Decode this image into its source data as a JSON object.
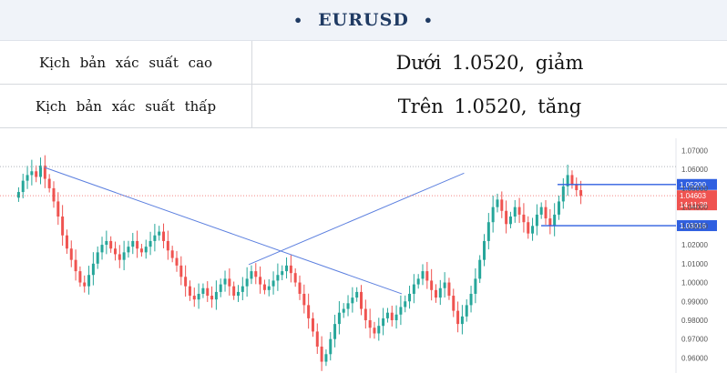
{
  "header": {
    "bullet_left": "•",
    "bullet_right": "•",
    "symbol": "EURUSD"
  },
  "scenarios": [
    {
      "label": "Kịch bản xác suất cao",
      "value": "Dưới 1.0520, giảm"
    },
    {
      "label": "Kịch bản xác suất thấp",
      "value": "Trên 1.0520, tăng"
    }
  ],
  "chart_data": {
    "type": "candlestick",
    "title": "",
    "xlabel": "",
    "ylabel": "",
    "ylim": [
      0.955,
      1.075
    ],
    "y_ticks": [
      "1.07000",
      "1.06000",
      "1.05000",
      "1.04000",
      "1.03000",
      "1.02000",
      "1.01000",
      "1.00000",
      "0.99000",
      "0.98000",
      "0.97000",
      "0.96000"
    ],
    "grid": false,
    "colors": {
      "up": "#26a69a",
      "down": "#ef5350",
      "trendline": "#5b7fdf",
      "level": "#2f5fe0",
      "current": "#ef5350"
    },
    "horizontal_levels": [
      {
        "label": "1.05200",
        "value": 1.052
      },
      {
        "label": "1.03016",
        "value": 1.03016
      }
    ],
    "current_price": {
      "value": 1.04603,
      "label": "1.04603",
      "countdown": "14:11:38"
    },
    "trendlines": [
      {
        "from": [
          0.05,
          1.061
        ],
        "to": [
          0.68,
          0.994
        ]
      },
      {
        "from": [
          0.41,
          1.0095
        ],
        "to": [
          0.79,
          1.058
        ]
      }
    ],
    "close_path": [
      1.048,
      1.054,
      1.057,
      1.059,
      1.056,
      1.062,
      1.055,
      1.05,
      1.043,
      1.035,
      1.025,
      1.018,
      1.012,
      1.006,
      1.0,
      0.998,
      1.004,
      1.01,
      1.016,
      1.02,
      1.022,
      1.018,
      1.015,
      1.012,
      1.016,
      1.019,
      1.022,
      1.018,
      1.016,
      1.019,
      1.022,
      1.025,
      1.027,
      1.022,
      1.017,
      1.013,
      1.009,
      1.003,
      0.998,
      0.993,
      0.991,
      0.994,
      0.997,
      0.993,
      0.991,
      0.995,
      0.999,
      1.002,
      0.998,
      0.993,
      0.995,
      0.998,
      1.002,
      1.006,
      1.003,
      0.999,
      0.996,
      0.998,
      1.001,
      1.004,
      1.006,
      1.009,
      1.005,
      1.0,
      0.994,
      0.988,
      0.981,
      0.974,
      0.966,
      0.958,
      0.962,
      0.97,
      0.978,
      0.984,
      0.986,
      0.989,
      0.992,
      0.995,
      0.986,
      0.98,
      0.976,
      0.973,
      0.977,
      0.981,
      0.984,
      0.98,
      0.983,
      0.987,
      0.99,
      0.994,
      0.999,
      1.002,
      1.006,
      1.001,
      0.996,
      0.992,
      0.997,
      1.0,
      0.993,
      0.985,
      0.978,
      0.982,
      0.988,
      0.994,
      1.002,
      1.012,
      1.022,
      1.032,
      1.04,
      1.044,
      1.038,
      1.031,
      1.035,
      1.04,
      1.036,
      1.032,
      1.026,
      1.03,
      1.036,
      1.04,
      1.034,
      1.03,
      1.036,
      1.043,
      1.051,
      1.057,
      1.052,
      1.049,
      1.046
    ]
  }
}
